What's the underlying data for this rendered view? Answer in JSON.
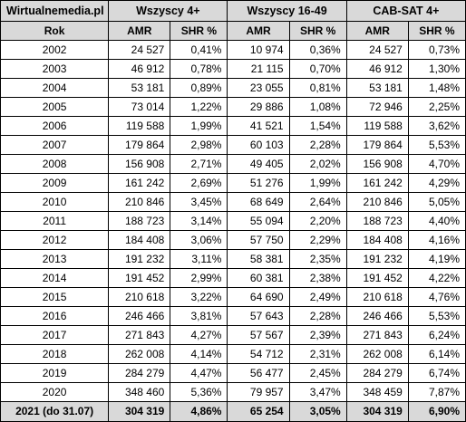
{
  "header": {
    "source": "Wirtualnemedia.pl",
    "group1": "Wszyscy 4+",
    "group2": "Wszyscy 16-49",
    "group3": "CAB-SAT 4+"
  },
  "subheader": {
    "year": "Rok",
    "amr1": "AMR",
    "shr1": "SHR %",
    "amr2": "AMR",
    "shr2": "SHR %",
    "amr3": "AMR",
    "shr3": "SHR %"
  },
  "rows": [
    {
      "year": "2002",
      "amr1": "24 527",
      "shr1": "0,41%",
      "amr2": "10 974",
      "shr2": "0,36%",
      "amr3": "24 527",
      "shr3": "0,73%"
    },
    {
      "year": "2003",
      "amr1": "46 912",
      "shr1": "0,78%",
      "amr2": "21 115",
      "shr2": "0,70%",
      "amr3": "46 912",
      "shr3": "1,30%"
    },
    {
      "year": "2004",
      "amr1": "53 181",
      "shr1": "0,89%",
      "amr2": "23 055",
      "shr2": "0,81%",
      "amr3": "53 181",
      "shr3": "1,48%"
    },
    {
      "year": "2005",
      "amr1": "73 014",
      "shr1": "1,22%",
      "amr2": "29 886",
      "shr2": "1,08%",
      "amr3": "72 946",
      "shr3": "2,25%"
    },
    {
      "year": "2006",
      "amr1": "119 588",
      "shr1": "1,99%",
      "amr2": "41 521",
      "shr2": "1,54%",
      "amr3": "119 588",
      "shr3": "3,62%"
    },
    {
      "year": "2007",
      "amr1": "179 864",
      "shr1": "2,98%",
      "amr2": "60 103",
      "shr2": "2,28%",
      "amr3": "179 864",
      "shr3": "5,53%"
    },
    {
      "year": "2008",
      "amr1": "156 908",
      "shr1": "2,71%",
      "amr2": "49 405",
      "shr2": "2,02%",
      "amr3": "156 908",
      "shr3": "4,70%"
    },
    {
      "year": "2009",
      "amr1": "161 242",
      "shr1": "2,69%",
      "amr2": "51 276",
      "shr2": "1,99%",
      "amr3": "161 242",
      "shr3": "4,29%"
    },
    {
      "year": "2010",
      "amr1": "210 846",
      "shr1": "3,45%",
      "amr2": "68 649",
      "shr2": "2,64%",
      "amr3": "210 846",
      "shr3": "5,05%"
    },
    {
      "year": "2011",
      "amr1": "188 723",
      "shr1": "3,14%",
      "amr2": "55 094",
      "shr2": "2,20%",
      "amr3": "188 723",
      "shr3": "4,40%"
    },
    {
      "year": "2012",
      "amr1": "184 408",
      "shr1": "3,06%",
      "amr2": "57 750",
      "shr2": "2,29%",
      "amr3": "184 408",
      "shr3": "4,16%"
    },
    {
      "year": "2013",
      "amr1": "191 232",
      "shr1": "3,11%",
      "amr2": "58 381",
      "shr2": "2,35%",
      "amr3": "191 232",
      "shr3": "4,19%"
    },
    {
      "year": "2014",
      "amr1": "191 452",
      "shr1": "2,99%",
      "amr2": "60 381",
      "shr2": "2,38%",
      "amr3": "191 452",
      "shr3": "4,22%"
    },
    {
      "year": "2015",
      "amr1": "210 618",
      "shr1": "3,22%",
      "amr2": "64 690",
      "shr2": "2,49%",
      "amr3": "210 618",
      "shr3": "4,76%"
    },
    {
      "year": "2016",
      "amr1": "246 466",
      "shr1": "3,81%",
      "amr2": "57 643",
      "shr2": "2,28%",
      "amr3": "246 466",
      "shr3": "5,53%"
    },
    {
      "year": "2017",
      "amr1": "271 843",
      "shr1": "4,27%",
      "amr2": "57 567",
      "shr2": "2,39%",
      "amr3": "271 843",
      "shr3": "6,24%"
    },
    {
      "year": "2018",
      "amr1": "262 008",
      "shr1": "4,14%",
      "amr2": "54 712",
      "shr2": "2,31%",
      "amr3": "262 008",
      "shr3": "6,14%"
    },
    {
      "year": "2019",
      "amr1": "284 279",
      "shr1": "4,47%",
      "amr2": "56 477",
      "shr2": "2,45%",
      "amr3": "284 279",
      "shr3": "6,74%"
    },
    {
      "year": "2020",
      "amr1": "348 460",
      "shr1": "5,36%",
      "amr2": "79 957",
      "shr2": "3,47%",
      "amr3": "348 459",
      "shr3": "7,87%"
    }
  ],
  "last_row": {
    "year": "2021 (do 31.07)",
    "amr1": "304 319",
    "shr1": "4,86%",
    "amr2": "65 254",
    "shr2": "3,05%",
    "amr3": "304 319",
    "shr3": "6,90%"
  }
}
